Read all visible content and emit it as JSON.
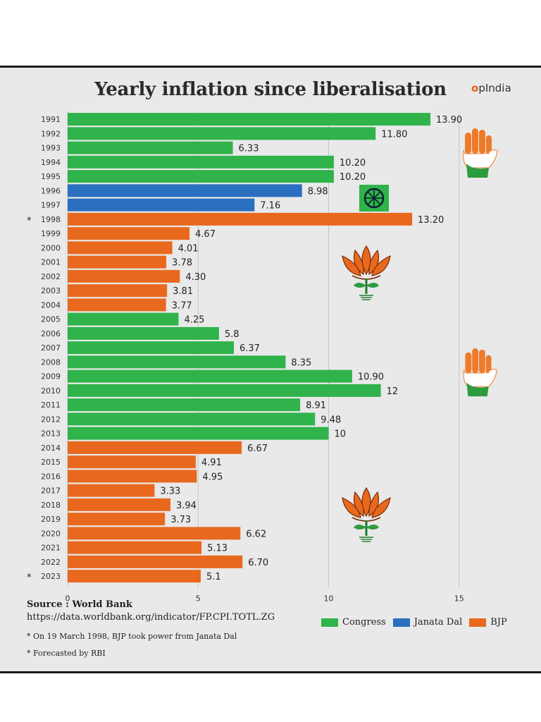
{
  "title": "Yearly inflation since liberalisation",
  "brand": {
    "accent": "o",
    "rest": "pIndia"
  },
  "colors": {
    "Congress": "#2fb34a",
    "Janata Dal": "#2a6fc0",
    "BJP": "#e8691e",
    "grid": "#c4c4c4"
  },
  "chart_data": {
    "type": "bar",
    "orientation": "horizontal",
    "categories": [
      "1991",
      "1992",
      "1993",
      "1994",
      "1995",
      "1996",
      "1997",
      "1998",
      "1999",
      "2000",
      "2001",
      "2002",
      "2003",
      "2004",
      "2005",
      "2006",
      "2007",
      "2008",
      "2009",
      "2010",
      "2011",
      "2012",
      "2013",
      "2014",
      "2015",
      "2016",
      "2017",
      "2018",
      "2019",
      "2020",
      "2021",
      "2022",
      "2023"
    ],
    "category_marks": [
      "",
      "",
      "",
      "",
      "",
      "",
      "",
      "*",
      "",
      "",
      "",
      "",
      "",
      "",
      "",
      "",
      "",
      "",
      "",
      "",
      "",
      "",
      "",
      "",
      "",
      "",
      "",
      "",
      "",
      "",
      "",
      "",
      "*"
    ],
    "values": [
      13.9,
      11.8,
      6.33,
      10.2,
      10.2,
      8.98,
      7.16,
      13.2,
      4.67,
      4.01,
      3.78,
      4.3,
      3.81,
      3.77,
      4.25,
      5.8,
      6.37,
      8.35,
      10.9,
      12,
      8.91,
      9.48,
      10,
      6.67,
      4.91,
      4.95,
      3.33,
      3.94,
      3.73,
      6.62,
      5.13,
      6.7,
      5.1
    ],
    "value_labels": [
      "13.90",
      "11.80",
      "6.33",
      "10.20",
      "10.20",
      "8.98",
      "7.16",
      "13.20",
      "4.67",
      "4.01",
      "3.78",
      "4.30",
      "3.81",
      "3.77",
      "4.25",
      "5.8",
      "6.37",
      "8.35",
      "10.90",
      "12",
      "8.91",
      "9.48",
      "10",
      "6.67",
      "4.91",
      "4.95",
      "3.33",
      "3.94",
      "3.73",
      "6.62",
      "5.13",
      "6.70",
      "5.1"
    ],
    "party": [
      "Congress",
      "Congress",
      "Congress",
      "Congress",
      "Congress",
      "Janata Dal",
      "Janata Dal",
      "BJP",
      "BJP",
      "BJP",
      "BJP",
      "BJP",
      "BJP",
      "BJP",
      "Congress",
      "Congress",
      "Congress",
      "Congress",
      "Congress",
      "Congress",
      "Congress",
      "Congress",
      "Congress",
      "BJP",
      "BJP",
      "BJP",
      "BJP",
      "BJP",
      "BJP",
      "BJP",
      "BJP",
      "BJP",
      "BJP"
    ],
    "xticks": [
      0,
      5,
      10,
      15
    ],
    "xlim": [
      0,
      16
    ],
    "grid": "vertical",
    "legend": [
      "Congress",
      "Janata Dal",
      "BJP"
    ],
    "legend_position": "bottom-right"
  },
  "source": {
    "label": "Source : World Bank",
    "url": "https://data.worldbank.org/indicator/FP.CPI.TOTL.ZG"
  },
  "notes": [
    "* On 19 March 1998, BJP took power from Janata Dal",
    "* Forecasted by RBI"
  ],
  "symbols": [
    "hand-icon",
    "wheel-icon",
    "lotus-icon",
    "hand-icon",
    "lotus-icon"
  ]
}
